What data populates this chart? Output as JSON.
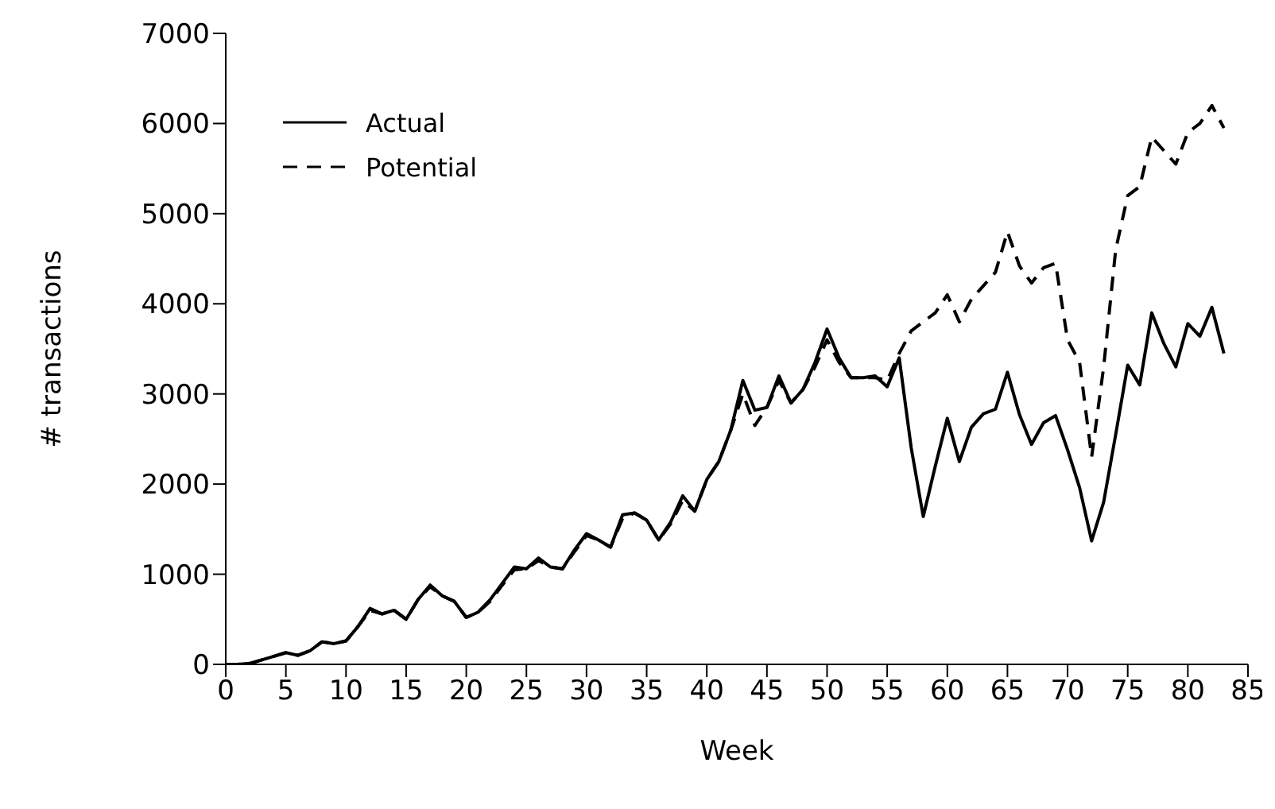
{
  "chart_data": {
    "type": "line",
    "xlabel": "Week",
    "ylabel": "# transactions",
    "x": [
      0,
      1,
      2,
      3,
      4,
      5,
      6,
      7,
      8,
      9,
      10,
      11,
      12,
      13,
      14,
      15,
      16,
      17,
      18,
      19,
      20,
      21,
      22,
      23,
      24,
      25,
      26,
      27,
      28,
      29,
      30,
      31,
      32,
      33,
      34,
      35,
      36,
      37,
      38,
      39,
      40,
      41,
      42,
      43,
      44,
      45,
      46,
      47,
      48,
      49,
      50,
      51,
      52,
      53,
      54,
      55,
      56,
      57,
      58,
      59,
      60,
      61,
      62,
      63,
      64,
      65,
      66,
      67,
      68,
      69,
      70,
      71,
      72,
      73,
      74,
      75,
      76,
      77,
      78,
      79,
      80,
      81,
      82,
      83
    ],
    "series": [
      {
        "name": "Actual",
        "color": "#000000",
        "line_style": "solid",
        "values": [
          0,
          0,
          10,
          50,
          90,
          130,
          100,
          150,
          250,
          230,
          260,
          420,
          620,
          560,
          600,
          500,
          720,
          880,
          760,
          700,
          520,
          580,
          720,
          900,
          1080,
          1060,
          1180,
          1080,
          1060,
          1270,
          1450,
          1380,
          1300,
          1660,
          1680,
          1600,
          1380,
          1580,
          1870,
          1700,
          2050,
          2250,
          2600,
          3150,
          2820,
          2850,
          3200,
          2900,
          3050,
          3350,
          3720,
          3400,
          3180,
          3180,
          3200,
          3080,
          3400,
          2400,
          1640,
          2200,
          2730,
          2250,
          2630,
          2780,
          2830,
          3240,
          2770,
          2440,
          2680,
          2760,
          2380,
          1960,
          1370,
          1800,
          2550,
          3320,
          3100,
          3900,
          3560,
          3300,
          3780,
          3640,
          3960,
          3450
        ]
      },
      {
        "name": "Potential",
        "color": "#000000",
        "line_style": "dashed",
        "values": [
          0,
          0,
          10,
          50,
          90,
          130,
          100,
          150,
          250,
          230,
          260,
          420,
          600,
          560,
          600,
          500,
          720,
          860,
          760,
          700,
          520,
          580,
          700,
          880,
          1050,
          1060,
          1150,
          1080,
          1060,
          1250,
          1430,
          1380,
          1300,
          1620,
          1680,
          1600,
          1380,
          1560,
          1820,
          1700,
          2050,
          2250,
          2600,
          3000,
          2650,
          2850,
          3150,
          2900,
          3050,
          3300,
          3600,
          3350,
          3180,
          3180,
          3180,
          3150,
          3450,
          3700,
          3800,
          3900,
          4100,
          3800,
          4050,
          4200,
          4350,
          4800,
          4420,
          4230,
          4400,
          4450,
          3600,
          3350,
          2300,
          3300,
          4600,
          5200,
          5300,
          5850,
          5700,
          5550,
          5900,
          6000,
          6200,
          5950
        ]
      }
    ],
    "xlim": [
      0,
      85
    ],
    "xticks": [
      0,
      5,
      10,
      15,
      20,
      25,
      30,
      35,
      40,
      45,
      50,
      55,
      60,
      65,
      70,
      75,
      80,
      85
    ],
    "ylim": [
      0,
      7000
    ],
    "yticks": [
      0,
      1000,
      2000,
      3000,
      4000,
      5000,
      6000,
      7000
    ],
    "grid": false,
    "legend": "top left",
    "marker": "none"
  }
}
